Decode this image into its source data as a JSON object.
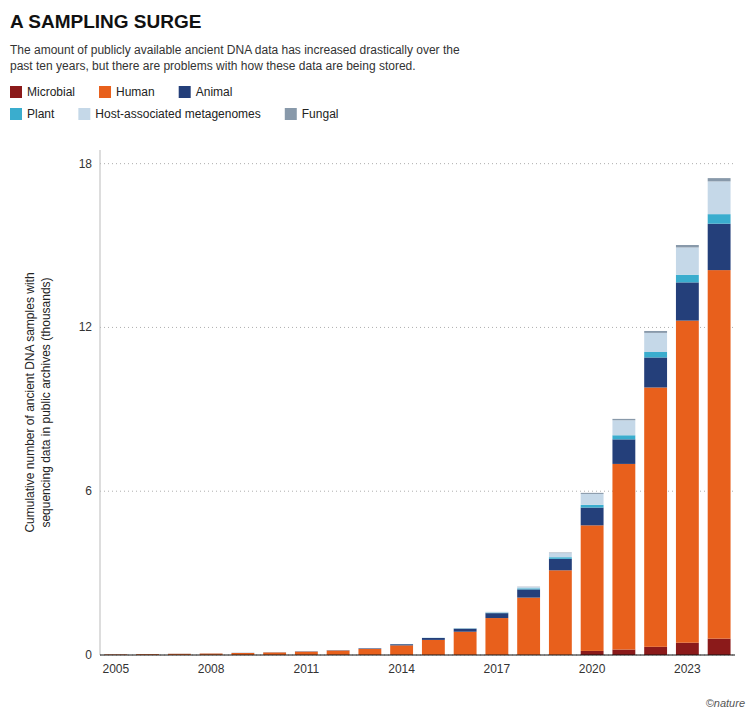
{
  "chart_data": {
    "type": "bar",
    "stacked": true,
    "title": "A SAMPLING SURGE",
    "subtitle": "The amount of publicly available ancient DNA data has increased drastically over the\npast ten years, but there are problems with how these data are being stored.",
    "y_label": "Cumulative number of ancient DNA samples with\nsequencing data in public archives (thousands)",
    "annotations": [
      "©nature"
    ],
    "categories": [
      "2005",
      null,
      null,
      "2008",
      null,
      null,
      "2011",
      null,
      null,
      "2014",
      null,
      null,
      "2017",
      null,
      null,
      "2020",
      null,
      null,
      "2023",
      null
    ],
    "series": [
      {
        "name": "Microbial",
        "color": "#8B1A1A",
        "values": [
          0.003,
          0.003,
          0.003,
          0.003,
          0.003,
          0.003,
          0.003,
          0.003,
          0.003,
          0.003,
          0.003,
          0.003,
          0.003,
          0.003,
          0.003,
          0.15,
          0.2,
          0.3,
          0.45,
          0.6
        ]
      },
      {
        "name": "Human",
        "color": "#E8601C",
        "values": [
          0.02,
          0.03,
          0.04,
          0.05,
          0.07,
          0.09,
          0.12,
          0.16,
          0.22,
          0.35,
          0.55,
          0.85,
          1.35,
          2.1,
          3.1,
          4.6,
          6.8,
          9.5,
          11.8,
          13.5
        ]
      },
      {
        "name": "Animal",
        "color": "#243F7A",
        "values": [
          0.003,
          0.003,
          0.003,
          0.003,
          0.005,
          0.005,
          0.01,
          0.01,
          0.02,
          0.04,
          0.07,
          0.11,
          0.18,
          0.3,
          0.42,
          0.65,
          0.9,
          1.1,
          1.4,
          1.7
        ]
      },
      {
        "name": "Plant",
        "color": "#3AADCE",
        "values": [
          0.0,
          0.0,
          0.0,
          0.0,
          0.0,
          0.0,
          0.0,
          0.0,
          0.0,
          0.003,
          0.005,
          0.01,
          0.02,
          0.04,
          0.06,
          0.1,
          0.15,
          0.2,
          0.28,
          0.35
        ]
      },
      {
        "name": "Host-associated metagenomes",
        "color": "#C5D8E8",
        "values": [
          0.0,
          0.0,
          0.0,
          0.0,
          0.0,
          0.0,
          0.0,
          0.0,
          0.0,
          0.0,
          0.003,
          0.005,
          0.02,
          0.05,
          0.15,
          0.4,
          0.55,
          0.7,
          1.0,
          1.2
        ]
      },
      {
        "name": "Fungal",
        "color": "#8899AA",
        "values": [
          0.0,
          0.0,
          0.0,
          0.0,
          0.0,
          0.0,
          0.0,
          0.0,
          0.0,
          0.0,
          0.0,
          0.003,
          0.005,
          0.01,
          0.02,
          0.04,
          0.05,
          0.07,
          0.09,
          0.12
        ]
      }
    ],
    "ylim": [
      0,
      18.5
    ],
    "yticks": [
      0,
      6,
      12,
      18
    ],
    "grid": true,
    "legend": "top"
  }
}
